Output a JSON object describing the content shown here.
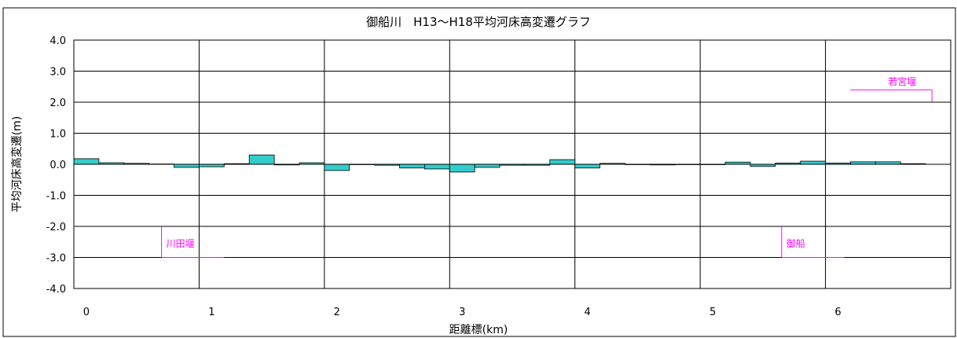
{
  "chart_data": {
    "type": "bar",
    "title": "御船川　H13～H18平均河床高変遷グラフ",
    "xlabel": "距離標(km)",
    "ylabel": "平均河床高変遷(m)",
    "xlim": [
      -0.1,
      6.9
    ],
    "ylim": [
      -4.0,
      4.0
    ],
    "x_ticks": [
      0,
      1,
      2,
      3,
      4,
      5,
      6
    ],
    "x_tick_labels": [
      "0",
      "1",
      "2",
      "3",
      "4",
      "5",
      "6"
    ],
    "y_ticks": [
      -4,
      -3,
      -2,
      -1,
      0,
      1,
      2,
      3,
      4
    ],
    "y_tick_labels": [
      "-4.0",
      "-3.0",
      "-2.0",
      "-1.0",
      "0.0",
      "1.0",
      "2.0",
      "3.0",
      "4.0"
    ],
    "grid": true,
    "bar_color": "#33cccc",
    "annotation_color": "#ff00ff",
    "series": [
      {
        "values": [
          {
            "x": 0.0,
            "y": 0.18
          },
          {
            "x": 0.2,
            "y": 0.05
          },
          {
            "x": 0.4,
            "y": 0.03
          },
          {
            "x": 0.6,
            "y": 0.01
          },
          {
            "x": 0.8,
            "y": -0.1
          },
          {
            "x": 1.0,
            "y": -0.08
          },
          {
            "x": 1.2,
            "y": 0.02
          },
          {
            "x": 1.4,
            "y": 0.3
          },
          {
            "x": 1.6,
            "y": -0.02
          },
          {
            "x": 1.8,
            "y": 0.05
          },
          {
            "x": 2.0,
            "y": -0.2
          },
          {
            "x": 2.2,
            "y": 0.0
          },
          {
            "x": 2.4,
            "y": -0.03
          },
          {
            "x": 2.6,
            "y": -0.12
          },
          {
            "x": 2.8,
            "y": -0.15
          },
          {
            "x": 3.0,
            "y": -0.25
          },
          {
            "x": 3.2,
            "y": -0.1
          },
          {
            "x": 3.4,
            "y": -0.03
          },
          {
            "x": 3.6,
            "y": -0.03
          },
          {
            "x": 3.8,
            "y": 0.15
          },
          {
            "x": 4.0,
            "y": -0.12
          },
          {
            "x": 4.2,
            "y": 0.03
          },
          {
            "x": 4.4,
            "y": 0.0
          },
          {
            "x": 4.6,
            "y": -0.02
          },
          {
            "x": 4.8,
            "y": 0.0
          },
          {
            "x": 5.0,
            "y": 0.0
          },
          {
            "x": 5.2,
            "y": 0.07
          },
          {
            "x": 5.4,
            "y": -0.07
          },
          {
            "x": 5.6,
            "y": 0.04
          },
          {
            "x": 5.8,
            "y": 0.1
          },
          {
            "x": 6.0,
            "y": 0.04
          },
          {
            "x": 6.2,
            "y": 0.08
          },
          {
            "x": 6.4,
            "y": 0.08
          },
          {
            "x": 6.6,
            "y": 0.02
          }
        ]
      }
    ],
    "annotations": [
      {
        "label": "川田堰",
        "x_start": 0.6,
        "x_end": 1.1,
        "y_line": -3.0,
        "y_top": -2.0,
        "text_side": "below-top"
      },
      {
        "label": "御船",
        "x_start": 5.55,
        "x_end": 6.05,
        "y_line": -3.0,
        "y_top": -2.0,
        "text_side": "below-top"
      },
      {
        "label": "若宮堰",
        "x_start": 6.1,
        "x_end": 6.75,
        "y_line": 2.4,
        "y_top": 2.0,
        "text_side": "above"
      }
    ]
  }
}
